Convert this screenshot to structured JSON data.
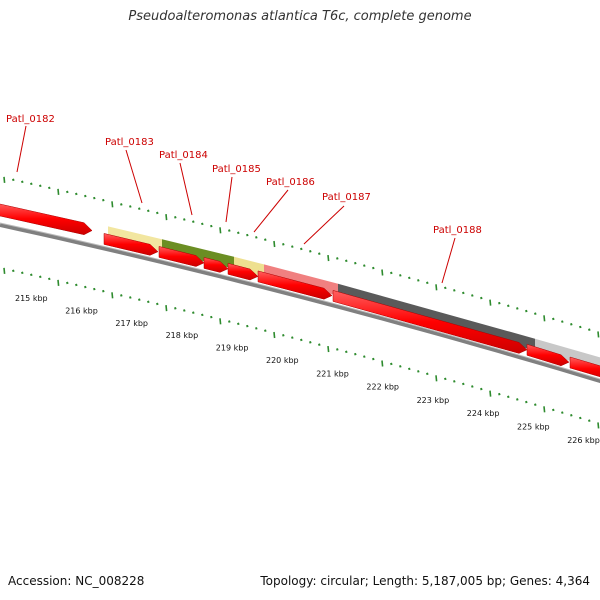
{
  "title": "Pseudoalteromonas atlantica T6c, complete genome",
  "accession": "Accession: NC_008228",
  "summary": "Topology: circular; Length: 5,187,005 bp; Genes: 4,364",
  "genes": [
    {
      "label": "Patl_0182"
    },
    {
      "label": "Patl_0183"
    },
    {
      "label": "Patl_0184"
    },
    {
      "label": "Patl_0185"
    },
    {
      "label": "Patl_0186"
    },
    {
      "label": "Patl_0187"
    },
    {
      "label": "Patl_0188"
    }
  ],
  "ticks": [
    {
      "label": "215 kbp"
    },
    {
      "label": "216 kbp"
    },
    {
      "label": "217 kbp"
    },
    {
      "label": "218 kbp"
    },
    {
      "label": "219 kbp"
    },
    {
      "label": "220 kbp"
    },
    {
      "label": "221 kbp"
    },
    {
      "label": "222 kbp"
    },
    {
      "label": "223 kbp"
    },
    {
      "label": "224 kbp"
    },
    {
      "label": "225 kbp"
    },
    {
      "label": "226 kbp"
    }
  ],
  "colors": {
    "cds": "#ff0000",
    "gene_label": "#cc0000",
    "ticks": "#2e8b2e",
    "backbone": "#808080",
    "feature_pale_yellow": "#f2e6a0",
    "feature_olive": "#6b8e23",
    "feature_yellow": "#eee090",
    "feature_pink": "#f08080",
    "feature_dark_gray": "#5a5a5a",
    "feature_light_gray": "#c8c8c8"
  }
}
